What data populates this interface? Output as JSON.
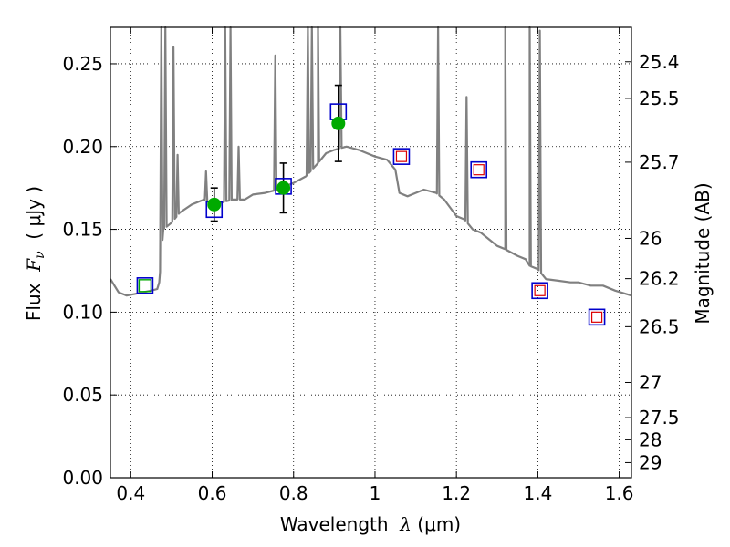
{
  "chart_data": {
    "type": "scatter",
    "title": "",
    "xlabel": "Wavelength  λ (μm)",
    "ylabel": "Flux  F_ν  ( μJy )",
    "ylabel_parts": {
      "prefix": "Flux  ",
      "math": "F",
      "sub": "ν",
      "suffix": "  ( μJy )"
    },
    "xlabel_parts": {
      "prefix": "Wavelength  ",
      "math": "λ",
      "suffix": " (μm)"
    },
    "y2label": "Magnitude (AB)",
    "xlim": [
      0.35,
      1.63
    ],
    "ylim": [
      0.0,
      0.272
    ],
    "grid": true,
    "x_ticks": [
      0.4,
      0.6,
      0.8,
      1.0,
      1.2,
      1.4,
      1.6
    ],
    "x_tick_labels": [
      "0.4",
      "0.6",
      "0.8",
      "1",
      "1.2",
      "1.4",
      "1.6"
    ],
    "y_ticks": [
      0.0,
      0.05,
      0.1,
      0.15,
      0.2,
      0.25
    ],
    "y_tick_labels": [
      "0.00",
      "0.05",
      "0.10",
      "0.15",
      "0.20",
      "0.25"
    ],
    "y2_ticks": [
      {
        "label": "25.4",
        "mag": 25.4
      },
      {
        "label": "25.5",
        "mag": 25.5
      },
      {
        "label": "25.7",
        "mag": 25.7
      },
      {
        "label": "26",
        "mag": 26.0
      },
      {
        "label": "26.2",
        "mag": 26.2
      },
      {
        "label": "26.5",
        "mag": 26.5
      },
      {
        "label": "27",
        "mag": 27.0
      },
      {
        "label": "27.5",
        "mag": 27.5
      },
      {
        "label": "28",
        "mag": 28.0
      },
      {
        "label": "29",
        "mag": 29.0
      }
    ],
    "colors": {
      "spectrum": "#808080",
      "observed": "#00aa00",
      "model_box": "#0000cc",
      "open_green": "#00aa00",
      "open_red": "#dd0000",
      "errorbar": "#000000"
    },
    "spectrum": {
      "name": "",
      "continuum": [
        [
          0.35,
          0.12
        ],
        [
          0.37,
          0.112
        ],
        [
          0.39,
          0.11
        ],
        [
          0.41,
          0.111
        ],
        [
          0.43,
          0.112
        ],
        [
          0.45,
          0.113
        ],
        [
          0.465,
          0.114
        ],
        [
          0.47,
          0.118
        ],
        [
          0.48,
          0.15
        ],
        [
          0.5,
          0.154
        ],
        [
          0.52,
          0.16
        ],
        [
          0.55,
          0.165
        ],
        [
          0.58,
          0.168
        ],
        [
          0.6,
          0.165
        ],
        [
          0.62,
          0.166
        ],
        [
          0.65,
          0.168
        ],
        [
          0.68,
          0.168
        ],
        [
          0.7,
          0.171
        ],
        [
          0.73,
          0.172
        ],
        [
          0.76,
          0.174
        ],
        [
          0.8,
          0.178
        ],
        [
          0.83,
          0.182
        ],
        [
          0.86,
          0.19
        ],
        [
          0.88,
          0.196
        ],
        [
          0.9,
          0.198
        ],
        [
          0.93,
          0.2
        ],
        [
          0.96,
          0.198
        ],
        [
          1.0,
          0.194
        ],
        [
          1.03,
          0.192
        ],
        [
          1.05,
          0.186
        ],
        [
          1.06,
          0.172
        ],
        [
          1.08,
          0.17
        ],
        [
          1.1,
          0.172
        ],
        [
          1.12,
          0.174
        ],
        [
          1.15,
          0.172
        ],
        [
          1.17,
          0.168
        ],
        [
          1.2,
          0.158
        ],
        [
          1.22,
          0.156
        ],
        [
          1.24,
          0.15
        ],
        [
          1.26,
          0.148
        ],
        [
          1.28,
          0.144
        ],
        [
          1.3,
          0.14
        ],
        [
          1.32,
          0.138
        ],
        [
          1.35,
          0.134
        ],
        [
          1.37,
          0.132
        ],
        [
          1.38,
          0.128
        ],
        [
          1.4,
          0.126
        ],
        [
          1.42,
          0.12
        ],
        [
          1.45,
          0.119
        ],
        [
          1.48,
          0.118
        ],
        [
          1.5,
          0.118
        ],
        [
          1.53,
          0.116
        ],
        [
          1.56,
          0.116
        ],
        [
          1.59,
          0.113
        ],
        [
          1.63,
          0.11
        ]
      ],
      "emission_lines": [
        {
          "x": 0.475,
          "peak": 0.272
        },
        {
          "x": 0.485,
          "peak": 0.272
        },
        {
          "x": 0.505,
          "peak": 0.26
        },
        {
          "x": 0.515,
          "peak": 0.195
        },
        {
          "x": 0.585,
          "peak": 0.185
        },
        {
          "x": 0.632,
          "peak": 0.272
        },
        {
          "x": 0.645,
          "peak": 0.272
        },
        {
          "x": 0.665,
          "peak": 0.2
        },
        {
          "x": 0.755,
          "peak": 0.255
        },
        {
          "x": 0.835,
          "peak": 0.272
        },
        {
          "x": 0.845,
          "peak": 0.272
        },
        {
          "x": 0.86,
          "peak": 0.272
        },
        {
          "x": 0.915,
          "peak": 0.272
        },
        {
          "x": 1.155,
          "peak": 0.272
        },
        {
          "x": 1.225,
          "peak": 0.23
        },
        {
          "x": 1.32,
          "peak": 0.272
        },
        {
          "x": 1.38,
          "peak": 0.272
        },
        {
          "x": 1.405,
          "peak": 0.27
        }
      ]
    },
    "observed_points": [
      {
        "x": 0.605,
        "y": 0.165,
        "yerr": 0.01
      },
      {
        "x": 0.775,
        "y": 0.175,
        "yerr": 0.015
      },
      {
        "x": 0.91,
        "y": 0.214,
        "yerr": 0.023
      }
    ],
    "model_boxes": [
      {
        "x": 0.435,
        "y": 0.116,
        "inner": "green"
      },
      {
        "x": 0.605,
        "y": 0.162,
        "inner": "none"
      },
      {
        "x": 0.775,
        "y": 0.176,
        "inner": "none"
      },
      {
        "x": 0.91,
        "y": 0.221,
        "inner": "none"
      },
      {
        "x": 1.065,
        "y": 0.194,
        "inner": "red"
      },
      {
        "x": 1.255,
        "y": 0.186,
        "inner": "red"
      },
      {
        "x": 1.405,
        "y": 0.113,
        "inner": "red"
      },
      {
        "x": 1.545,
        "y": 0.097,
        "inner": "red"
      }
    ]
  }
}
